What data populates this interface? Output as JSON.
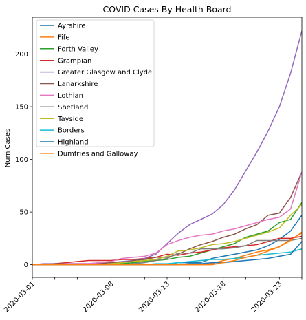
{
  "chart_data": {
    "type": "line",
    "title": "COVID Cases By Health Board",
    "xlabel": "",
    "ylabel": "Num Cases",
    "x": [
      "2020-03-01",
      "2020-03-02",
      "2020-03-03",
      "2020-03-04",
      "2020-03-05",
      "2020-03-06",
      "2020-03-07",
      "2020-03-08",
      "2020-03-09",
      "2020-03-10",
      "2020-03-11",
      "2020-03-12",
      "2020-03-13",
      "2020-03-14",
      "2020-03-15",
      "2020-03-16",
      "2020-03-17",
      "2020-03-18",
      "2020-03-19",
      "2020-03-20",
      "2020-03-21",
      "2020-03-22",
      "2020-03-23",
      "2020-03-24",
      "2020-03-25"
    ],
    "xlim": [
      "2020-03-01",
      "2020-03-25"
    ],
    "xticks": [
      "2020-03-01",
      "2020-03-03",
      "2020-03-05",
      "2020-03-08",
      "2020-03-11",
      "2020-03-13",
      "2020-03-15",
      "2020-03-18",
      "2020-03-20",
      "2020-03-23",
      "2020-03-25"
    ],
    "xtick_labels": [
      "2020-03-01",
      "",
      "",
      "2020-03-08",
      "",
      "2020-03-13",
      "",
      "2020-03-18",
      "",
      "2020-03-23",
      ""
    ],
    "ylim": [
      -12,
      235
    ],
    "yticks": [
      0,
      50,
      100,
      150,
      200
    ],
    "grid": false,
    "legend_position": "top-left",
    "series": [
      {
        "name": "Ayrshire",
        "color": "#1f77b4",
        "values": [
          0,
          0,
          0,
          0,
          0,
          0,
          0,
          0,
          0,
          0,
          0,
          0,
          0,
          2,
          2,
          2,
          6,
          8,
          10,
          12,
          14,
          18,
          24,
          32,
          47
        ]
      },
      {
        "name": "Fife",
        "color": "#ff7f0e",
        "values": [
          0,
          0,
          0,
          0,
          0,
          0,
          0,
          0,
          0,
          0,
          0,
          0,
          0,
          0,
          0,
          0,
          1,
          4,
          6,
          9,
          12,
          14,
          17,
          24,
          30
        ]
      },
      {
        "name": "Forth Valley",
        "color": "#2ca02c",
        "values": [
          0,
          0,
          0,
          0,
          0,
          0,
          0,
          0,
          1,
          2,
          3,
          4,
          5,
          7,
          8,
          11,
          14,
          17,
          20,
          26,
          29,
          32,
          40,
          43,
          59
        ]
      },
      {
        "name": "Grampian",
        "color": "#d62728",
        "values": [
          0,
          0,
          1,
          2,
          3,
          4,
          4,
          4,
          5,
          5,
          6,
          7,
          10,
          9,
          11,
          12,
          14,
          16,
          17,
          18,
          19,
          22,
          25,
          25,
          27
        ]
      },
      {
        "name": "Greater Glasgow and Clyde",
        "color": "#9467bd",
        "values": [
          0,
          1,
          1,
          1,
          1,
          1,
          2,
          2,
          3,
          4,
          6,
          10,
          20,
          30,
          38,
          43,
          48,
          57,
          71,
          89,
          107,
          127,
          150,
          182,
          222
        ]
      },
      {
        "name": "Lanarkshire",
        "color": "#8c564b",
        "values": [
          0,
          0,
          1,
          1,
          1,
          1,
          1,
          2,
          2,
          4,
          5,
          7,
          7,
          10,
          15,
          19,
          22,
          26,
          29,
          34,
          38,
          47,
          49,
          64,
          88
        ]
      },
      {
        "name": "Lothian",
        "color": "#e377c2",
        "values": [
          0,
          0,
          0,
          1,
          1,
          1,
          2,
          3,
          6,
          7,
          8,
          11,
          19,
          23,
          26,
          28,
          29,
          32,
          34,
          37,
          40,
          43,
          45,
          53,
          88
        ]
      },
      {
        "name": "Shetland",
        "color": "#7f7f7f",
        "values": [
          0,
          0,
          0,
          0,
          0,
          0,
          0,
          0,
          0,
          1,
          2,
          4,
          6,
          11,
          11,
          15,
          15,
          15,
          16,
          18,
          23,
          23,
          23,
          23,
          25
        ]
      },
      {
        "name": "Tayside",
        "color": "#bcbd22",
        "values": [
          0,
          0,
          0,
          0,
          0,
          0,
          0,
          1,
          2,
          3,
          4,
          5,
          8,
          13,
          14,
          16,
          19,
          20,
          22,
          25,
          28,
          31,
          35,
          47,
          57
        ]
      },
      {
        "name": "Borders",
        "color": "#17becf",
        "values": [
          0,
          0,
          0,
          0,
          0,
          0,
          0,
          0,
          0,
          0,
          0,
          1,
          1,
          2,
          3,
          4,
          5,
          5,
          6,
          7,
          9,
          10,
          11,
          12,
          15
        ]
      },
      {
        "name": "Highland",
        "color": "#1f77b4",
        "values": [
          0,
          0,
          0,
          0,
          0,
          0,
          0,
          0,
          0,
          0,
          0,
          0,
          0,
          0,
          1,
          1,
          2,
          2,
          3,
          4,
          5,
          6,
          8,
          10,
          22
        ]
      },
      {
        "name": "Dumfries and Galloway",
        "color": "#ff7f0e",
        "values": [
          0,
          0,
          0,
          0,
          0,
          0,
          0,
          0,
          0,
          0,
          0,
          0,
          0,
          0,
          0,
          0,
          0,
          2,
          4,
          7,
          9,
          13,
          17,
          23,
          31
        ]
      }
    ]
  }
}
